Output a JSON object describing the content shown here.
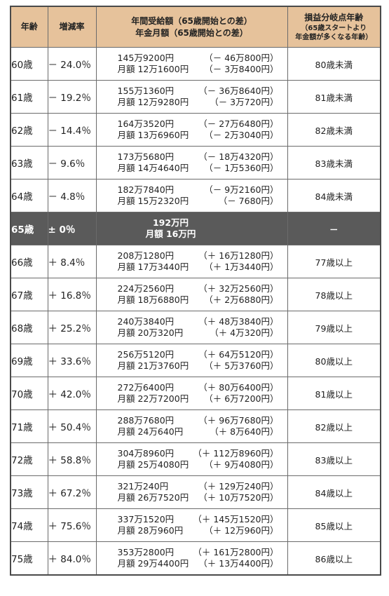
{
  "headers": {
    "age": "年齢",
    "rate": "増減率",
    "amount_line1": "年間受給額（65歳開始との差）",
    "amount_line2": "年金月額（65歳開始との差）",
    "breakeven_title": "損益分岐点年齢",
    "breakeven_sub1": "（65歳スタートより",
    "breakeven_sub2": "年金額が多くなる年齢）"
  },
  "rows": [
    {
      "age": "60歳",
      "rate": "－ 24.0％",
      "annual": "145万9200円",
      "annual_diff": "（－ 46万800円）",
      "monthly": "月額 12万1600円",
      "monthly_diff": "（－ 3万8400円）",
      "breakeven": "80歳未満"
    },
    {
      "age": "61歳",
      "rate": "－ 19.2％",
      "annual": "155万1360円",
      "annual_diff": "（－ 36万8640円）",
      "monthly": "月額 12万9280円",
      "monthly_diff": "（－ 3万720円）",
      "breakeven": "81歳未満"
    },
    {
      "age": "62歳",
      "rate": "－ 14.4％",
      "annual": "164万3520円",
      "annual_diff": "（－ 27万6480円）",
      "monthly": "月額 13万6960円",
      "monthly_diff": "（－ 2万3040円）",
      "breakeven": "82歳未満"
    },
    {
      "age": "63歳",
      "rate": "－ 9.6％",
      "annual": "173万5680円",
      "annual_diff": "（－ 18万4320円）",
      "monthly": "月額 14万4640円",
      "monthly_diff": "（－ 1万5360円）",
      "breakeven": "83歳未満"
    },
    {
      "age": "64歳",
      "rate": "－ 4.8％",
      "annual": "182万7840円",
      "annual_diff": "（－ 9万2160円）",
      "monthly": "月額 15万2320円",
      "monthly_diff": "（－ 7680円）",
      "breakeven": "84歳未満"
    },
    {
      "age": "65歳",
      "rate": "± 0％",
      "annual": "192万円",
      "annual_diff": "",
      "monthly": "月額 16万円",
      "monthly_diff": "",
      "breakeven": "－",
      "highlight": true
    },
    {
      "age": "66歳",
      "rate": "＋ 8.4％",
      "annual": "208万1280円",
      "annual_diff": "（＋ 16万1280円）",
      "monthly": "月額 17万3440円",
      "monthly_diff": "（＋ 1万3440円）",
      "breakeven": "77歳以上"
    },
    {
      "age": "67歳",
      "rate": "＋ 16.8％",
      "annual": "224万2560円",
      "annual_diff": "（＋ 32万2560円）",
      "monthly": "月額 18万6880円",
      "monthly_diff": "（＋ 2万6880円）",
      "breakeven": "78歳以上"
    },
    {
      "age": "68歳",
      "rate": "＋ 25.2％",
      "annual": "240万3840円",
      "annual_diff": "（＋ 48万3840円）",
      "monthly": "月額 20万320円",
      "monthly_diff": "（＋ 4万320円）",
      "breakeven": "79歳以上"
    },
    {
      "age": "69歳",
      "rate": "＋ 33.6％",
      "annual": "256万5120円",
      "annual_diff": "（＋ 64万5120円）",
      "monthly": "月額 21万3760円",
      "monthly_diff": "（＋ 5万3760円）",
      "breakeven": "80歳以上"
    },
    {
      "age": "70歳",
      "rate": "＋ 42.0％",
      "annual": "272万6400円",
      "annual_diff": "（＋ 80万6400円）",
      "monthly": "月額 22万7200円",
      "monthly_diff": "（＋ 6万7200円）",
      "breakeven": "81歳以上"
    },
    {
      "age": "71歳",
      "rate": "＋ 50.4％",
      "annual": "288万7680円",
      "annual_diff": "（＋ 96万7680円）",
      "monthly": "月額 24万640円",
      "monthly_diff": "（＋ 8万640円）",
      "breakeven": "82歳以上"
    },
    {
      "age": "72歳",
      "rate": "＋ 58.8％",
      "annual": "304万8960円",
      "annual_diff": "（＋ 112万8960円）",
      "monthly": "月額 25万4080円",
      "monthly_diff": "（＋ 9万4080円）",
      "breakeven": "83歳以上"
    },
    {
      "age": "73歳",
      "rate": "＋ 67.2％",
      "annual": "321万240円",
      "annual_diff": "（＋ 129万240円）",
      "monthly": "月額 26万7520円",
      "monthly_diff": "（＋ 10万7520円）",
      "breakeven": "84歳以上"
    },
    {
      "age": "74歳",
      "rate": "＋ 75.6％",
      "annual": "337万1520円",
      "annual_diff": "（＋ 145万1520円）",
      "monthly": "月額 28万960円",
      "monthly_diff": "（＋ 12万960円）",
      "breakeven": "85歳以上"
    },
    {
      "age": "75歳",
      "rate": "＋ 84.0％",
      "annual": "353万2800円",
      "annual_diff": "（＋ 161万2800円）",
      "monthly": "月額 29万4400円",
      "monthly_diff": "（＋ 13万4400円）",
      "breakeven": "86歳以上"
    }
  ]
}
